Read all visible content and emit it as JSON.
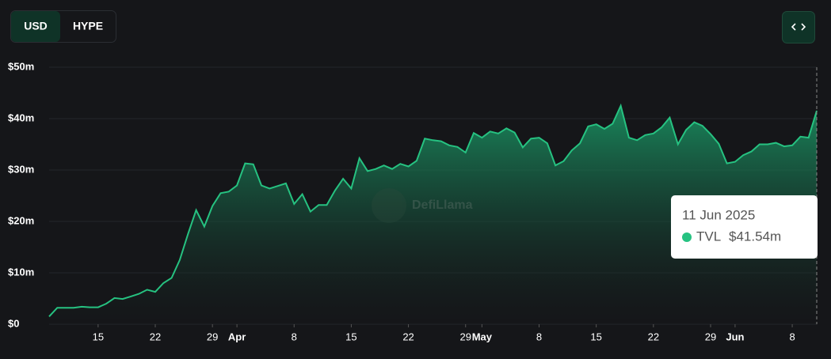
{
  "buttons": {
    "denominations": [
      "USD",
      "HYPE"
    ],
    "active": "USD"
  },
  "watermark": "DefiLlama",
  "chart_data": {
    "type": "area",
    "x": [
      "2025-03-09",
      "2025-03-10",
      "2025-03-11",
      "2025-03-12",
      "2025-03-13",
      "2025-03-14",
      "2025-03-15",
      "2025-03-16",
      "2025-03-17",
      "2025-03-18",
      "2025-03-19",
      "2025-03-20",
      "2025-03-21",
      "2025-03-22",
      "2025-03-23",
      "2025-03-24",
      "2025-03-25",
      "2025-03-26",
      "2025-03-27",
      "2025-03-28",
      "2025-03-29",
      "2025-03-30",
      "2025-03-31",
      "2025-04-01",
      "2025-04-02",
      "2025-04-03",
      "2025-04-04",
      "2025-04-05",
      "2025-04-06",
      "2025-04-07",
      "2025-04-08",
      "2025-04-09",
      "2025-04-10",
      "2025-04-11",
      "2025-04-12",
      "2025-04-13",
      "2025-04-14",
      "2025-04-15",
      "2025-04-16",
      "2025-04-17",
      "2025-04-18",
      "2025-04-19",
      "2025-04-20",
      "2025-04-21",
      "2025-04-22",
      "2025-04-23",
      "2025-04-24",
      "2025-04-25",
      "2025-04-26",
      "2025-04-27",
      "2025-04-28",
      "2025-04-29",
      "2025-04-30",
      "2025-05-01",
      "2025-05-02",
      "2025-05-03",
      "2025-05-04",
      "2025-05-05",
      "2025-05-06",
      "2025-05-07",
      "2025-05-08",
      "2025-05-09",
      "2025-05-10",
      "2025-05-11",
      "2025-05-12",
      "2025-05-13",
      "2025-05-14",
      "2025-05-15",
      "2025-05-16",
      "2025-05-17",
      "2025-05-18",
      "2025-05-19",
      "2025-05-20",
      "2025-05-21",
      "2025-05-22",
      "2025-05-23",
      "2025-05-24",
      "2025-05-25",
      "2025-05-26",
      "2025-05-27",
      "2025-05-28",
      "2025-05-29",
      "2025-05-30",
      "2025-05-31",
      "2025-06-01",
      "2025-06-02",
      "2025-06-03",
      "2025-06-04",
      "2025-06-05",
      "2025-06-06",
      "2025-06-07",
      "2025-06-08",
      "2025-06-09",
      "2025-06-10",
      "2025-06-11"
    ],
    "series": [
      {
        "name": "TVL",
        "color": "#26c281",
        "values": [
          1.5,
          3.2,
          3.2,
          3.2,
          3.4,
          3.3,
          3.3,
          4,
          5.1,
          4.9,
          5.4,
          5.9,
          6.7,
          6.3,
          8,
          9,
          12.5,
          17.5,
          22.2,
          19,
          23,
          25.5,
          25.8,
          27,
          31.3,
          31.1,
          27,
          26.4,
          26.9,
          27.4,
          23.4,
          25.3,
          21.9,
          23.2,
          23.2,
          26,
          28.3,
          26.4,
          32.3,
          29.8,
          30.2,
          30.9,
          30.2,
          31.2,
          30.7,
          31.8,
          36.1,
          35.8,
          35.6,
          34.8,
          34.5,
          33.4,
          37.2,
          36.3,
          37.5,
          37.1,
          38.1,
          37.3,
          34.4,
          36.1,
          36.3,
          35.2,
          30.9,
          31.7,
          33.8,
          35.2,
          38.5,
          38.9,
          38,
          39,
          42.5,
          36.3,
          35.8,
          36.8,
          37.1,
          38.3,
          40.2,
          35,
          37.8,
          39.3,
          38.6,
          37,
          35.1,
          31.3,
          31.6,
          32.9,
          33.6,
          35,
          35,
          35.3,
          34.6,
          34.8,
          36.5,
          36.3,
          41.54
        ]
      }
    ],
    "xlim": [
      "2025-03-09",
      "2025-06-11"
    ],
    "xticks": [
      {
        "value": "2025-03-15",
        "label": "15"
      },
      {
        "value": "2025-03-22",
        "label": "22"
      },
      {
        "value": "2025-03-29",
        "label": "29"
      },
      {
        "value": "2025-04-01",
        "label": "Apr"
      },
      {
        "value": "2025-04-08",
        "label": "8"
      },
      {
        "value": "2025-04-15",
        "label": "15"
      },
      {
        "value": "2025-04-22",
        "label": "22"
      },
      {
        "value": "2025-04-29",
        "label": "29"
      },
      {
        "value": "2025-05-01",
        "label": "May"
      },
      {
        "value": "2025-05-08",
        "label": "8"
      },
      {
        "value": "2025-05-15",
        "label": "15"
      },
      {
        "value": "2025-05-22",
        "label": "22"
      },
      {
        "value": "2025-05-29",
        "label": "29"
      },
      {
        "value": "2025-06-01",
        "label": "Jun"
      },
      {
        "value": "2025-06-08",
        "label": "8"
      }
    ],
    "ylim": [
      0,
      50
    ],
    "yticks": [
      {
        "value": 0,
        "label": "$0"
      },
      {
        "value": 10,
        "label": "$10m"
      },
      {
        "value": 20,
        "label": "$20m"
      },
      {
        "value": 30,
        "label": "$30m"
      },
      {
        "value": 40,
        "label": "$40m"
      },
      {
        "value": 50,
        "label": "$50m"
      }
    ],
    "grid": true,
    "tooltip": {
      "date": "11 Jun 2025",
      "value_label": "$41.54m"
    }
  }
}
